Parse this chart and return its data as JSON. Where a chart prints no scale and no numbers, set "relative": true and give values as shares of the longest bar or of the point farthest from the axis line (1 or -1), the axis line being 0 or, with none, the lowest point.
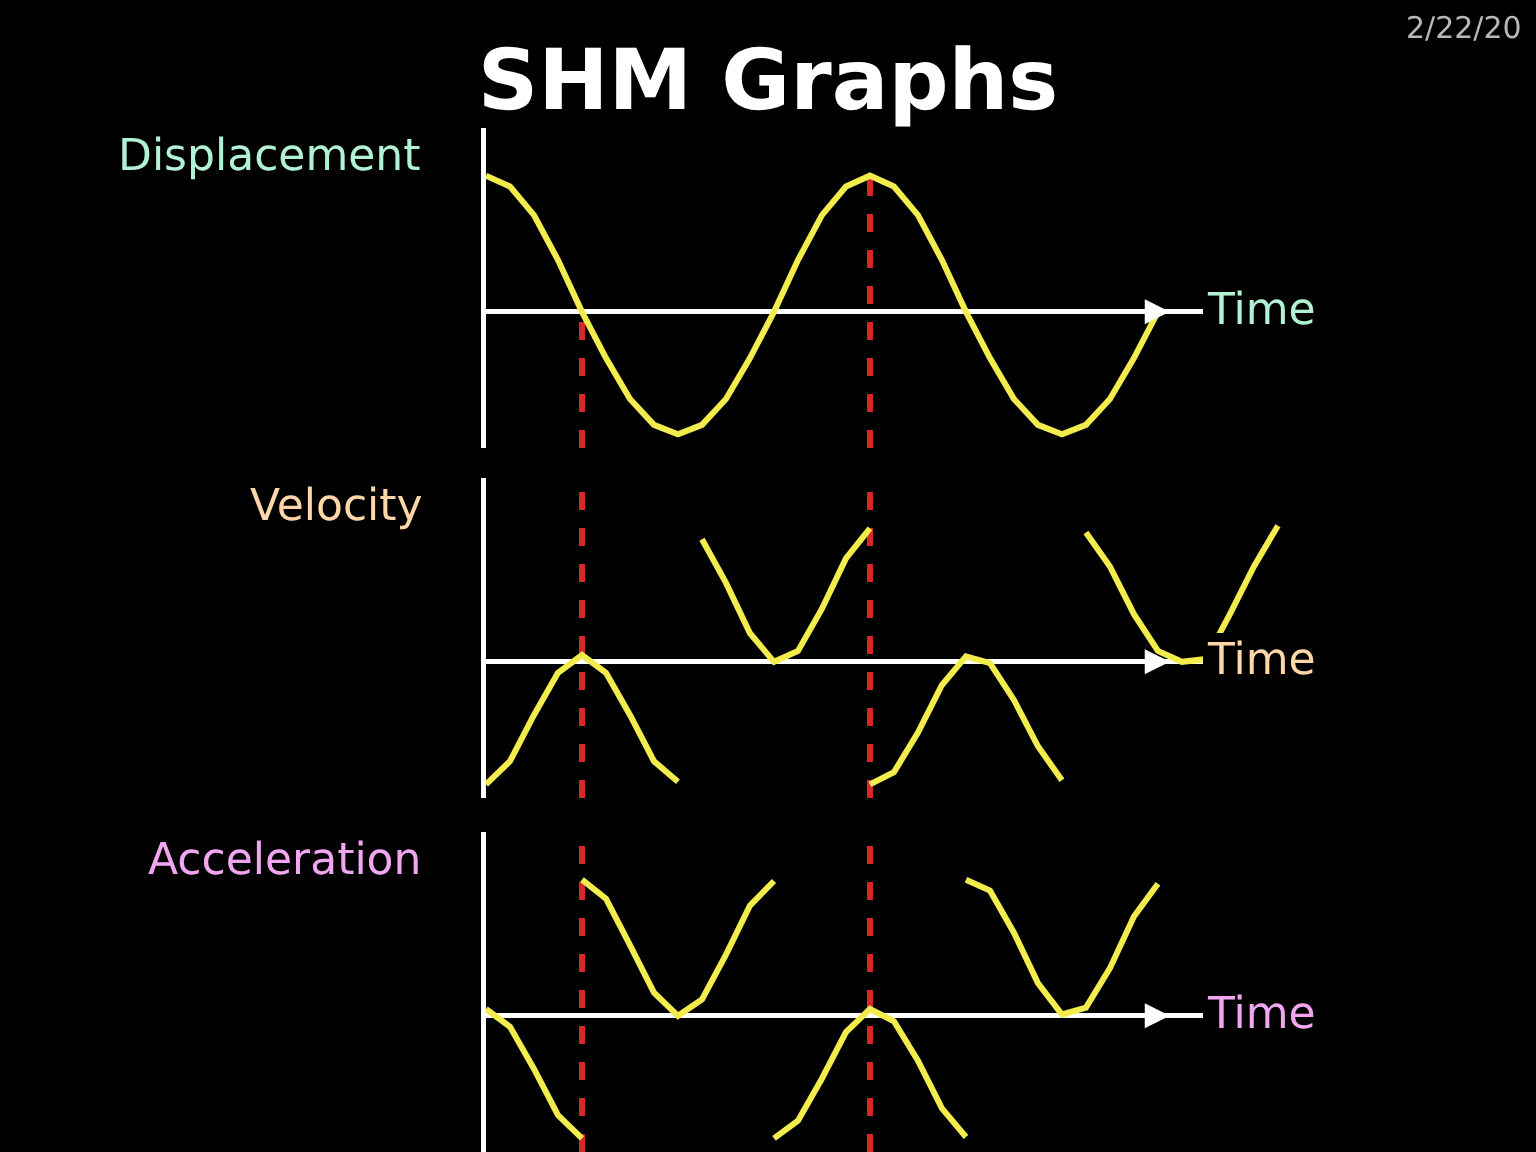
{
  "chart_data": [
    {
      "type": "line",
      "title": "SHM Graphs",
      "annotations": [
        "2/22/20"
      ],
      "ylabel": "Displacement",
      "xlabel": "Time",
      "relative": true,
      "categories": [
        null,
        null,
        null,
        null,
        null,
        null,
        null,
        null,
        null,
        null,
        null,
        null,
        null,
        null,
        null,
        null,
        null,
        null,
        null,
        null,
        null,
        null,
        null,
        null,
        null,
        null,
        null,
        null,
        null,
        null,
        null,
        null,
        null,
        null
      ],
      "series": [
        {
          "color": "#f2ec4c",
          "values": [
            1,
            0.92,
            0.71,
            0.38,
            0,
            -0.34,
            -0.64,
            -0.83,
            -0.9,
            -0.83,
            -0.64,
            -0.34,
            0,
            0.38,
            0.71,
            0.92,
            1,
            0.92,
            0.71,
            0.38,
            0,
            -0.34,
            -0.64,
            -0.83,
            -0.9,
            -0.83,
            -0.64,
            -0.34,
            0,
            null,
            null,
            null,
            null,
            null
          ]
        }
      ]
    },
    {
      "type": "line",
      "ylabel": "Velocity",
      "xlabel": "Time",
      "relative": true,
      "categories": [
        null,
        null,
        null,
        null,
        null,
        null,
        null,
        null,
        null,
        null,
        null,
        null,
        null,
        null,
        null,
        null,
        null,
        null,
        null,
        null,
        null,
        null,
        null,
        null,
        null,
        null,
        null,
        null,
        null,
        null,
        null,
        null,
        null,
        null
      ],
      "series": [
        {
          "color": "#f2ec4c",
          "values": [
            -0.9,
            -0.73,
            -0.39,
            -0.08,
            0.05,
            -0.08,
            -0.39,
            -0.73,
            -0.88,
            null,
            null,
            null,
            null,
            null,
            null,
            null,
            null,
            null,
            null,
            null,
            null,
            null,
            null,
            null,
            null,
            null,
            null,
            null,
            null,
            null,
            null,
            null,
            null,
            null
          ]
        },
        {
          "color": "#f2ec4c",
          "values": [
            null,
            null,
            null,
            null,
            null,
            null,
            null,
            null,
            null,
            0.9,
            0.58,
            0.21,
            0,
            0.08,
            0.39,
            0.76,
            0.98,
            null,
            null,
            null,
            null,
            null,
            null,
            null,
            null,
            null,
            null,
            null,
            null,
            null,
            null,
            null,
            null,
            null
          ]
        },
        {
          "color": "#f2ec4c",
          "values": [
            null,
            null,
            null,
            null,
            null,
            null,
            null,
            null,
            null,
            null,
            null,
            null,
            null,
            null,
            null,
            null,
            -0.9,
            -0.81,
            -0.52,
            -0.17,
            0.04,
            -0.01,
            -0.28,
            -0.62,
            -0.87,
            null,
            null,
            null,
            null,
            null,
            null,
            null,
            null,
            null
          ]
        },
        {
          "color": "#f2ec4c",
          "values": [
            null,
            null,
            null,
            null,
            null,
            null,
            null,
            null,
            null,
            null,
            null,
            null,
            null,
            null,
            null,
            null,
            null,
            null,
            null,
            null,
            null,
            null,
            null,
            null,
            null,
            0.95,
            0.7,
            0.35,
            0.08,
            0,
            0.02,
            0.35,
            0.7,
            1
          ]
        }
      ]
    },
    {
      "type": "line",
      "ylabel": "Acceleration",
      "xlabel": "Time",
      "relative": true,
      "categories": [
        null,
        null,
        null,
        null,
        null,
        null,
        null,
        null,
        null,
        null,
        null,
        null,
        null,
        null,
        null,
        null,
        null,
        null,
        null,
        null,
        null,
        null,
        null,
        null,
        null,
        null,
        null,
        null,
        null,
        null,
        null,
        null,
        null,
        null
      ],
      "series": [
        {
          "color": "#f2ec4c",
          "values": [
            0.05,
            -0.08,
            -0.39,
            -0.73,
            -0.9,
            null,
            null,
            null,
            null,
            null,
            null,
            null,
            null,
            null,
            null,
            null,
            null,
            null,
            null,
            null,
            null,
            null,
            null,
            null,
            null,
            null,
            null,
            null,
            null,
            null,
            null,
            null,
            null,
            null
          ]
        },
        {
          "color": "#f2ec4c",
          "values": [
            null,
            null,
            null,
            null,
            1,
            0.86,
            0.52,
            0.17,
            0,
            0.12,
            0.45,
            0.81,
            0.99,
            null,
            null,
            null,
            null,
            null,
            null,
            null,
            null,
            null,
            null,
            null,
            null,
            null,
            null,
            null,
            null,
            null,
            null,
            null,
            null,
            null
          ]
        },
        {
          "color": "#f2ec4c",
          "values": [
            null,
            null,
            null,
            null,
            null,
            null,
            null,
            null,
            null,
            null,
            null,
            null,
            -0.9,
            -0.77,
            -0.46,
            -0.12,
            0.05,
            -0.04,
            -0.33,
            -0.68,
            -0.89,
            null,
            null,
            null,
            null,
            null,
            null,
            null,
            null,
            null,
            null,
            null,
            null,
            null
          ]
        },
        {
          "color": "#f2ec4c",
          "values": [
            null,
            null,
            null,
            null,
            null,
            null,
            null,
            null,
            null,
            null,
            null,
            null,
            null,
            null,
            null,
            null,
            null,
            null,
            null,
            null,
            1,
            0.92,
            0.61,
            0.24,
            0.01,
            0.06,
            0.35,
            0.73,
            0.97,
            null,
            null,
            null,
            null,
            null
          ]
        }
      ]
    }
  ]
}
